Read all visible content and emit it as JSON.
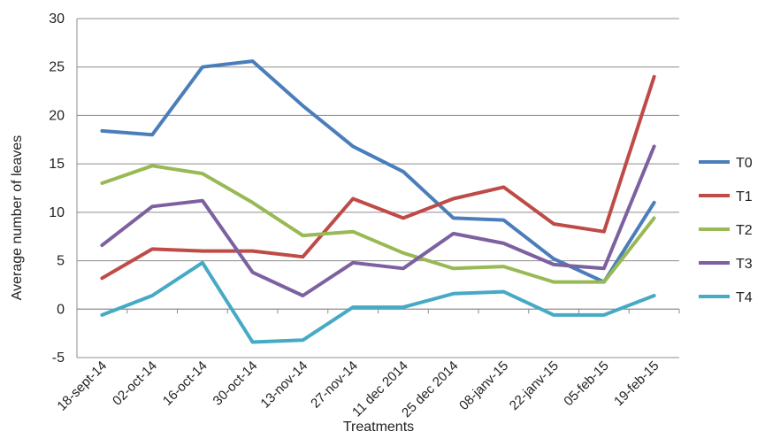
{
  "chart_data": {
    "type": "line",
    "title": "",
    "xlabel": "Treatments",
    "ylabel": "Average number of leaves",
    "ylim": [
      -5,
      30
    ],
    "yticks": [
      -5,
      0,
      5,
      10,
      15,
      20,
      25,
      30
    ],
    "grid": "horizontal",
    "legend": "right",
    "categories": [
      "18-sept-14",
      "02-oct-14",
      "16-oct-14",
      "30-oct-14",
      "13-nov-14",
      "27-nov-14",
      "11 dec 2014",
      "25 dec 2014",
      "08-janv-15",
      "22-janv-15",
      "05-feb-15",
      "19-feb-15"
    ],
    "series": [
      {
        "name": "T0",
        "color": "#4a7ebb",
        "values": [
          18.4,
          18.0,
          25.0,
          25.6,
          21.0,
          16.8,
          14.2,
          9.4,
          9.2,
          5.2,
          2.8,
          11.0
        ]
      },
      {
        "name": "T1",
        "color": "#be4b48",
        "values": [
          3.2,
          6.2,
          6.0,
          6.0,
          5.4,
          11.4,
          9.4,
          11.4,
          12.6,
          8.8,
          8.0,
          24.0
        ]
      },
      {
        "name": "T2",
        "color": "#98b954",
        "values": [
          13.0,
          14.8,
          14.0,
          11.0,
          7.6,
          8.0,
          5.8,
          4.2,
          4.4,
          2.8,
          2.8,
          9.4
        ]
      },
      {
        "name": "T3",
        "color": "#7d60a0",
        "values": [
          6.6,
          10.6,
          11.2,
          3.8,
          1.4,
          4.8,
          4.2,
          7.8,
          6.8,
          4.6,
          4.2,
          16.8
        ]
      },
      {
        "name": "T4",
        "color": "#46aac5",
        "values": [
          -0.6,
          1.4,
          4.8,
          -3.4,
          -3.2,
          0.2,
          0.2,
          1.6,
          1.8,
          -0.6,
          -0.6,
          1.4
        ]
      }
    ]
  }
}
